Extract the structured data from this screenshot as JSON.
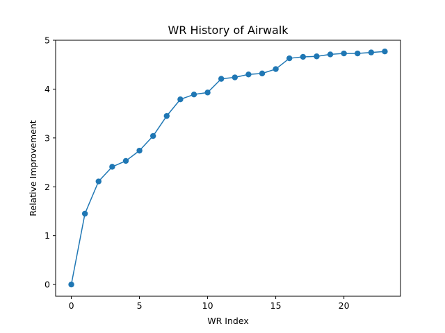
{
  "chart_data": {
    "type": "line",
    "title": "WR History of Airwalk",
    "xlabel": "WR Index",
    "ylabel": "Relative Improvement",
    "xlim": [
      -1.15,
      24.15
    ],
    "ylim": [
      -0.24,
      5.0
    ],
    "xticks": [
      0,
      5,
      10,
      15,
      20
    ],
    "yticks": [
      0,
      1,
      2,
      3,
      4,
      5
    ],
    "grid": false,
    "series": [
      {
        "color": "#1f77b4",
        "marker": "circle",
        "x": [
          0,
          1,
          2,
          3,
          4,
          5,
          6,
          7,
          8,
          9,
          10,
          11,
          12,
          13,
          14,
          15,
          16,
          17,
          18,
          19,
          20,
          21,
          22,
          23
        ],
        "y": [
          0.0,
          1.45,
          2.11,
          2.41,
          2.53,
          2.74,
          3.04,
          3.45,
          3.79,
          3.89,
          3.93,
          4.21,
          4.24,
          4.3,
          4.32,
          4.41,
          4.63,
          4.66,
          4.67,
          4.71,
          4.73,
          4.73,
          4.75,
          4.77
        ]
      }
    ]
  }
}
